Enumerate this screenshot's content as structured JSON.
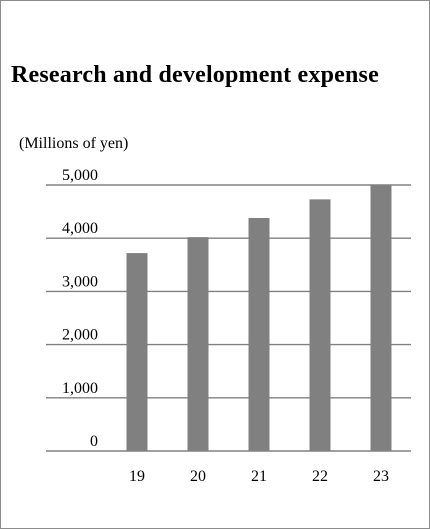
{
  "chart_data": {
    "type": "bar",
    "title": "Research and development expense",
    "units_label": "(Millions of yen)",
    "xlabel": "",
    "ylabel": "",
    "categories": [
      "19",
      "20",
      "21",
      "22",
      "23"
    ],
    "values": [
      3720,
      4020,
      4380,
      4730,
      5000
    ],
    "ylim": [
      0,
      5000
    ],
    "yticks": [
      0,
      1000,
      2000,
      3000,
      4000,
      5000
    ],
    "ytick_labels": [
      "0",
      "1,000",
      "2,000",
      "3,000",
      "4,000",
      "5,000"
    ],
    "grid": true,
    "legend": "none",
    "bar_color": "#808080",
    "grid_color": "#808080"
  }
}
